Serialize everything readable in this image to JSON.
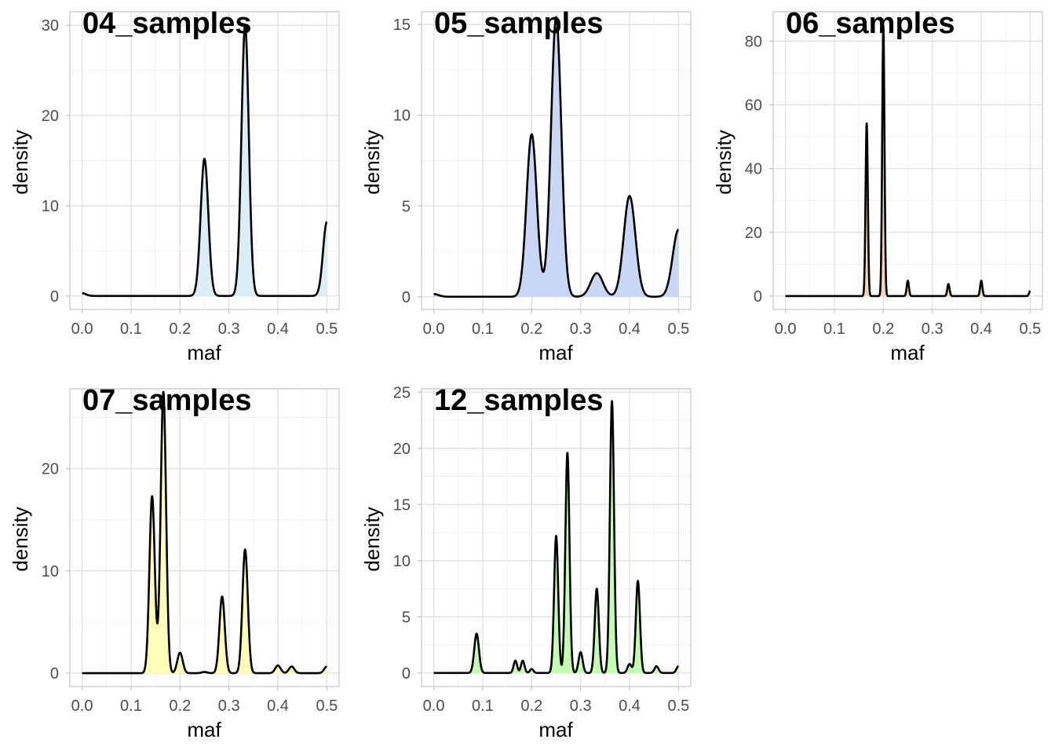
{
  "chart_data": [
    {
      "type": "area",
      "title": "04_samples",
      "xlabel": "maf",
      "ylabel": "density",
      "fill_color": "#dbeef5",
      "xlim": [
        -0.025,
        0.525
      ],
      "ylim": [
        -1.5,
        31.5
      ],
      "x_ticks": [
        0,
        0.1,
        0.2,
        0.3,
        0.4,
        0.5
      ],
      "x_tick_labels": [
        "0.0",
        "0.1",
        "0.2",
        "0.3",
        "0.4",
        "0.5"
      ],
      "y_ticks": [
        0,
        10,
        20,
        30
      ],
      "y_tick_labels": [
        "0",
        "10",
        "20",
        "30"
      ],
      "baseline": 0,
      "anchors": [
        [
          0,
          0.3
        ],
        [
          0.025,
          0
        ],
        [
          0.5,
          8.2
        ]
      ],
      "peaks": [
        {
          "x": 0.0,
          "y": 0.3,
          "w": 0.008
        },
        {
          "x": 0.25,
          "y": 15.2,
          "w": 0.0078
        },
        {
          "x": 0.333,
          "y": 30.0,
          "w": 0.0075
        },
        {
          "x": 0.5,
          "y": 8.2,
          "w": 0.0078
        }
      ]
    },
    {
      "type": "area",
      "title": "05_samples",
      "xlabel": "maf",
      "ylabel": "density",
      "fill_color": "#c9d6f5",
      "xlim": [
        -0.025,
        0.525
      ],
      "ylim": [
        -0.7,
        15.7
      ],
      "x_ticks": [
        0,
        0.1,
        0.2,
        0.3,
        0.4,
        0.5
      ],
      "x_tick_labels": [
        "0.0",
        "0.1",
        "0.2",
        "0.3",
        "0.4",
        "0.5"
      ],
      "y_ticks": [
        0,
        5,
        10,
        15
      ],
      "y_tick_labels": [
        "0",
        "5",
        "10",
        "15"
      ],
      "baseline": 0,
      "anchors": [
        [
          0,
          0.15
        ],
        [
          0.025,
          0
        ],
        [
          0.2,
          8.95
        ],
        [
          0.25,
          15.4
        ],
        [
          0.4,
          5.55
        ],
        [
          0.5,
          3.7
        ]
      ],
      "peaks": [
        {
          "x": 0.0,
          "y": 0.15,
          "w": 0.01
        },
        {
          "x": 0.2,
          "y": 8.95,
          "w": 0.0105
        },
        {
          "x": 0.25,
          "y": 15.4,
          "w": 0.0105
        },
        {
          "x": 0.333,
          "y": 1.3,
          "w": 0.0125
        },
        {
          "x": 0.4,
          "y": 5.55,
          "w": 0.012
        },
        {
          "x": 0.5,
          "y": 3.7,
          "w": 0.012
        }
      ]
    },
    {
      "type": "area",
      "title": "06_samples",
      "xlabel": "maf",
      "ylabel": "density",
      "fill_color": "#f8d5b4",
      "xlim": [
        -0.025,
        0.525
      ],
      "ylim": [
        -4.2,
        89.2
      ],
      "x_ticks": [
        0,
        0.1,
        0.2,
        0.3,
        0.4,
        0.5
      ],
      "x_tick_labels": [
        "0.0",
        "0.1",
        "0.2",
        "0.3",
        "0.4",
        "0.5"
      ],
      "y_ticks": [
        0,
        20,
        40,
        60,
        80
      ],
      "y_tick_labels": [
        "0",
        "20",
        "40",
        "60",
        "80"
      ],
      "baseline": 0,
      "anchors": [
        [
          0.166,
          54.2
        ],
        [
          0.2,
          85.0
        ],
        [
          0.5,
          1.6
        ]
      ],
      "peaks": [
        {
          "x": 0.166,
          "y": 54.2,
          "w": 0.0023
        },
        {
          "x": 0.2,
          "y": 85.0,
          "w": 0.0023
        },
        {
          "x": 0.25,
          "y": 4.8,
          "w": 0.0023
        },
        {
          "x": 0.333,
          "y": 3.8,
          "w": 0.0023
        },
        {
          "x": 0.4,
          "y": 4.8,
          "w": 0.0023
        },
        {
          "x": 0.5,
          "y": 1.6,
          "w": 0.0023
        }
      ]
    },
    {
      "type": "area",
      "title": "07_samples",
      "xlabel": "maf",
      "ylabel": "density",
      "fill_color": "#ffffb8",
      "xlim": [
        -0.025,
        0.525
      ],
      "ylim": [
        -1.3,
        27.8
      ],
      "x_ticks": [
        0,
        0.1,
        0.2,
        0.3,
        0.4,
        0.5
      ],
      "x_tick_labels": [
        "0.0",
        "0.1",
        "0.2",
        "0.3",
        "0.4",
        "0.5"
      ],
      "y_ticks": [
        0,
        10,
        20
      ],
      "y_tick_labels": [
        "0",
        "10",
        "20"
      ],
      "baseline": 0,
      "anchors": [
        [
          0.143,
          17.3
        ],
        [
          0.166,
          27.5
        ],
        [
          0.2,
          2.0
        ],
        [
          0.286,
          7.5
        ],
        [
          0.333,
          12.1
        ],
        [
          0.5,
          0.65
        ]
      ],
      "peaks": [
        {
          "x": 0.143,
          "y": 17.3,
          "w": 0.0055
        },
        {
          "x": 0.166,
          "y": 27.5,
          "w": 0.0055
        },
        {
          "x": 0.2,
          "y": 2.0,
          "w": 0.0055
        },
        {
          "x": 0.25,
          "y": 0.12,
          "w": 0.0055
        },
        {
          "x": 0.286,
          "y": 7.5,
          "w": 0.0055
        },
        {
          "x": 0.333,
          "y": 12.1,
          "w": 0.0055
        },
        {
          "x": 0.4,
          "y": 0.75,
          "w": 0.0055
        },
        {
          "x": 0.428,
          "y": 0.65,
          "w": 0.0055
        },
        {
          "x": 0.5,
          "y": 0.65,
          "w": 0.0055
        }
      ]
    },
    {
      "type": "area",
      "title": "12_samples",
      "xlabel": "maf",
      "ylabel": "density",
      "fill_color": "#c2ffb0",
      "xlim": [
        -0.025,
        0.525
      ],
      "ylim": [
        -1.2,
        25.3
      ],
      "x_ticks": [
        0,
        0.1,
        0.2,
        0.3,
        0.4,
        0.5
      ],
      "x_tick_labels": [
        "0.0",
        "0.1",
        "0.2",
        "0.3",
        "0.4",
        "0.5"
      ],
      "y_ticks": [
        0,
        5,
        10,
        15,
        20,
        25
      ],
      "y_tick_labels": [
        "0",
        "5",
        "10",
        "15",
        "20",
        "25"
      ],
      "baseline": 0,
      "anchors": [
        [
          0.0875,
          3.5
        ],
        [
          0.25,
          12.2
        ],
        [
          0.273,
          19.6
        ],
        [
          0.333,
          7.5
        ],
        [
          0.364,
          24.2
        ],
        [
          0.417,
          8.2
        ],
        [
          0.5,
          0.6
        ]
      ],
      "peaks": [
        {
          "x": 0.0875,
          "y": 3.5,
          "w": 0.0048
        },
        {
          "x": 0.1667,
          "y": 1.1,
          "w": 0.0036
        },
        {
          "x": 0.1818,
          "y": 1.1,
          "w": 0.0036
        },
        {
          "x": 0.2,
          "y": 0.35,
          "w": 0.0036
        },
        {
          "x": 0.25,
          "y": 12.2,
          "w": 0.0042
        },
        {
          "x": 0.273,
          "y": 19.6,
          "w": 0.0042
        },
        {
          "x": 0.3,
          "y": 1.85,
          "w": 0.0042
        },
        {
          "x": 0.333,
          "y": 7.5,
          "w": 0.0042
        },
        {
          "x": 0.364,
          "y": 24.2,
          "w": 0.0042
        },
        {
          "x": 0.4,
          "y": 0.8,
          "w": 0.0042
        },
        {
          "x": 0.417,
          "y": 8.2,
          "w": 0.0042
        },
        {
          "x": 0.455,
          "y": 0.6,
          "w": 0.0042
        },
        {
          "x": 0.5,
          "y": 0.6,
          "w": 0.0042
        }
      ]
    }
  ]
}
